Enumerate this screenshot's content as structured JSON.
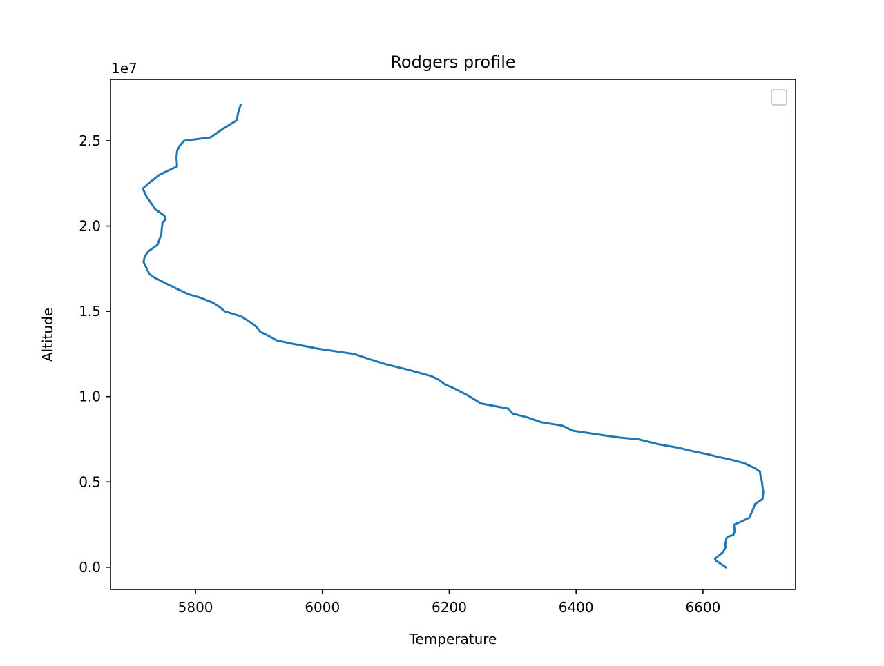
{
  "chart_data": {
    "type": "line",
    "title": "Rodgers profile",
    "xlabel": "Temperature",
    "ylabel": "Altitude",
    "y_offset_label": "1e7",
    "xlim": [
      5666,
      6746
    ],
    "ylim": [
      -0.13,
      2.86
    ],
    "xticks": [
      5800,
      6000,
      6200,
      6400,
      6600
    ],
    "yticks": [
      0.0,
      0.5,
      1.0,
      1.5,
      2.0,
      2.5
    ],
    "ytick_labels": [
      "0.0",
      "0.5",
      "1.0",
      "1.5",
      "2.0",
      "2.5"
    ],
    "grid": false,
    "legend": {
      "placement": "top-right",
      "entries": []
    },
    "series": [
      {
        "color": "#1f77b4",
        "x": [
          6636,
          6620,
          6619,
          6632,
          6636,
          6635,
          6636,
          6637,
          6640,
          6648,
          6650,
          6649,
          6662,
          6673,
          6678,
          6682,
          6694,
          6695,
          6694,
          6693,
          6690,
          6690,
          6682,
          6665,
          6645,
          6620,
          6610,
          6584,
          6562,
          6531,
          6498,
          6469,
          6450,
          6395,
          6378,
          6345,
          6322,
          6300,
          6293,
          6250,
          6228,
          6212,
          6207,
          6194,
          6183,
          6172,
          6133,
          6100,
          6074,
          6050,
          5995,
          5953,
          5928,
          5913,
          5902,
          5896,
          5885,
          5872,
          5846,
          5840,
          5828,
          5808,
          5789,
          5766,
          5734,
          5727,
          5722,
          5718,
          5720,
          5725,
          5740,
          5746,
          5747,
          5748,
          5753,
          5751,
          5736,
          5731,
          5723,
          5717,
          5726,
          5743,
          5771,
          5770,
          5771,
          5775,
          5782,
          5824,
          5843,
          5865,
          5867,
          5871
        ],
        "y": [
          0.0,
          0.04,
          0.05,
          0.09,
          0.12,
          0.13,
          0.15,
          0.17,
          0.18,
          0.19,
          0.21,
          0.25,
          0.27,
          0.29,
          0.33,
          0.37,
          0.4,
          0.44,
          0.47,
          0.5,
          0.55,
          0.56,
          0.58,
          0.61,
          0.63,
          0.65,
          0.66,
          0.68,
          0.7,
          0.72,
          0.75,
          0.76,
          0.77,
          0.8,
          0.83,
          0.85,
          0.88,
          0.9,
          0.93,
          0.96,
          1.01,
          1.04,
          1.05,
          1.07,
          1.1,
          1.12,
          1.16,
          1.19,
          1.22,
          1.25,
          1.28,
          1.31,
          1.33,
          1.36,
          1.38,
          1.41,
          1.44,
          1.47,
          1.5,
          1.52,
          1.55,
          1.58,
          1.6,
          1.64,
          1.7,
          1.72,
          1.76,
          1.79,
          1.82,
          1.85,
          1.89,
          1.95,
          1.99,
          2.02,
          2.04,
          2.06,
          2.1,
          2.13,
          2.17,
          2.22,
          2.25,
          2.3,
          2.35,
          2.4,
          2.44,
          2.47,
          2.5,
          2.52,
          2.57,
          2.62,
          2.66,
          2.71
        ]
      }
    ]
  }
}
